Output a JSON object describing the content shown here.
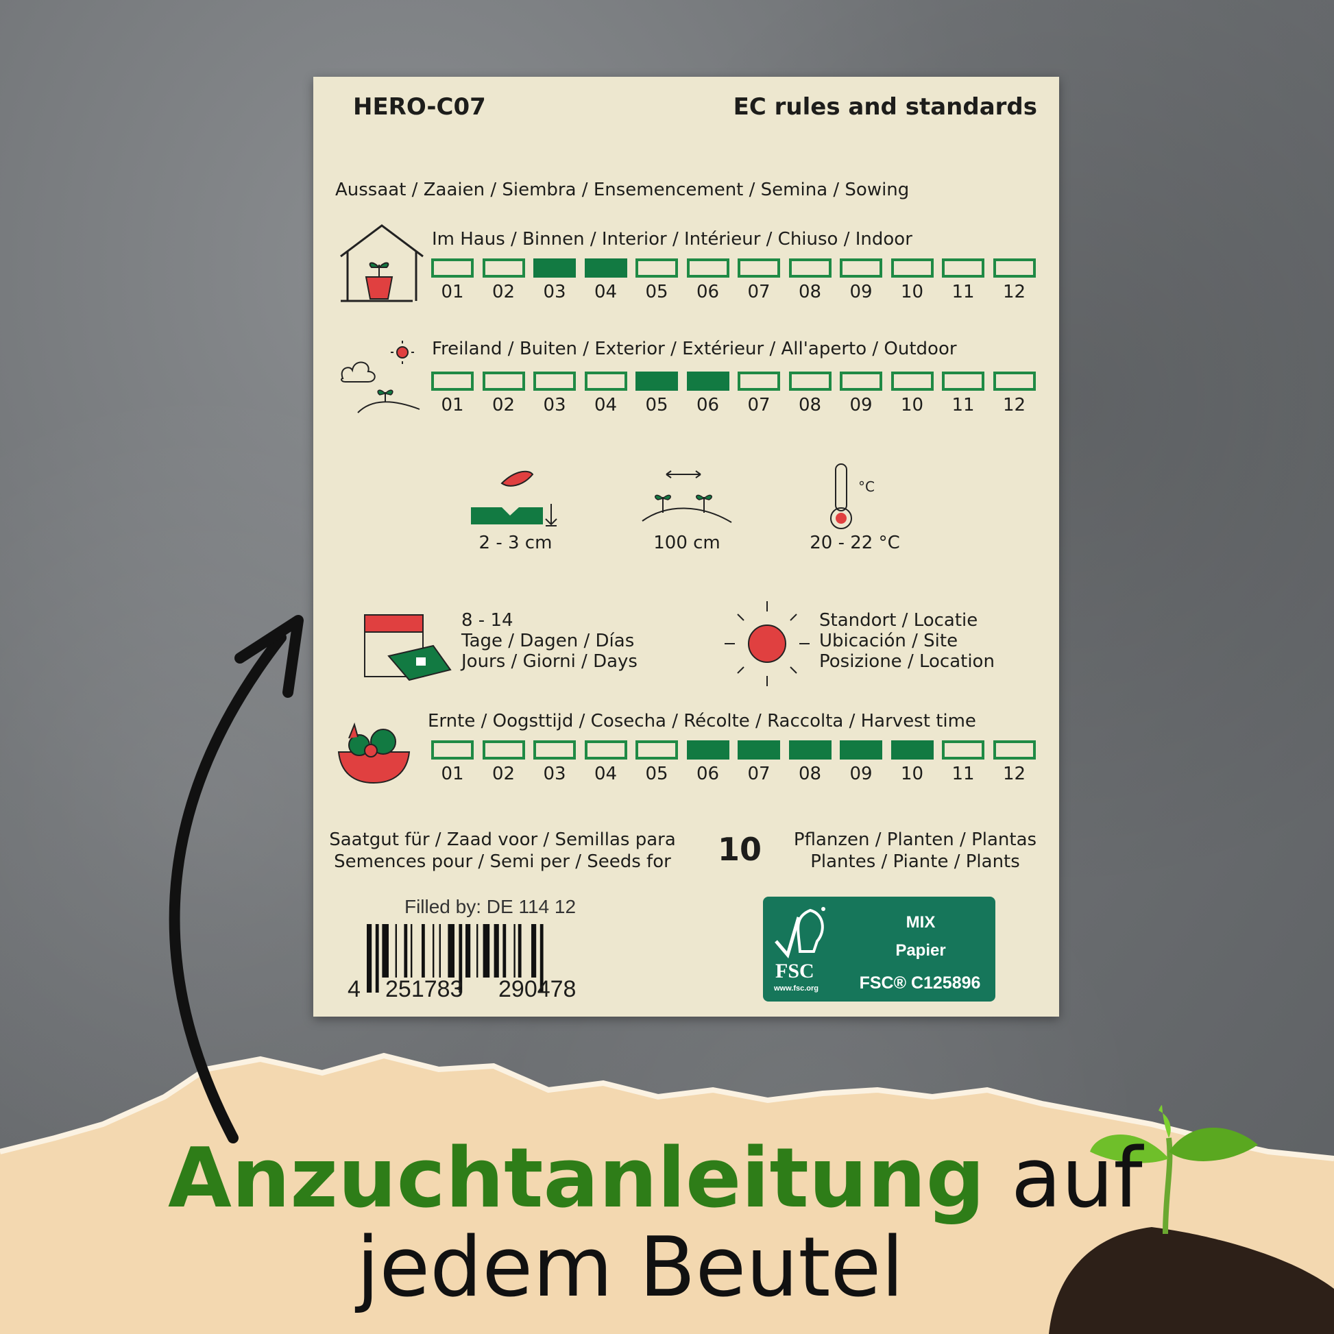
{
  "card": {
    "code": "HERO-C07",
    "standards": "EC rules and standards",
    "sowing_title": "Aussaat / Zaaien / Siembra / Ensemencement / Semina / Sowing",
    "indoor": {
      "label": "Im Haus / Binnen / Interior / Intérieur / Chiuso / Indoor",
      "active_months": [
        3,
        4
      ]
    },
    "outdoor": {
      "label": "Freiland / Buiten / Exterior / Extérieur / All'aperto / Outdoor",
      "active_months": [
        5,
        6
      ]
    },
    "months": [
      "01",
      "02",
      "03",
      "04",
      "05",
      "06",
      "07",
      "08",
      "09",
      "10",
      "11",
      "12"
    ],
    "depth": "2 - 3 cm",
    "spacing": "100 cm",
    "temperature": "20 - 22 °C",
    "germination": {
      "days": "8 - 14",
      "line1": "Tage / Dagen / Días",
      "line2": "Jours / Giorni / Days"
    },
    "location": {
      "line1": "Standort / Locatie",
      "line2": "Ubicación / Site",
      "line3": "Posizione / Location"
    },
    "harvest": {
      "label": "Ernte / Oogsttijd / Cosecha / Récolte / Raccolta / Harvest time",
      "active_months": [
        6,
        7,
        8,
        9,
        10
      ]
    },
    "seeds_left1": "Saatgut für / Zaad voor / Semillas para",
    "seeds_left2": "Semences pour / Semi per / Seeds for",
    "plant_count": "10",
    "seeds_right1": "Pflanzen / Planten / Plantas",
    "seeds_right2": "Plantes / Piante / Plants",
    "filled_by": "Filled by: DE 114 12",
    "barcode": {
      "first": "4",
      "left": "251783",
      "right": "290478"
    },
    "fsc": {
      "logo": "FSC",
      "url": "www.fsc.org",
      "mix": "MIX",
      "paper": "Papier",
      "code": "FSC® C125896"
    }
  },
  "banner": {
    "highlight": "Anzuchtanleitung",
    "rest": " auf",
    "line2": "jedem Beutel"
  },
  "colors": {
    "green_box": "#127a42",
    "banner_green": "#2e7d18",
    "fsc_green": "#16765a",
    "card_bg": "#ede7cf",
    "torn_paper": "#f3d8b0"
  }
}
